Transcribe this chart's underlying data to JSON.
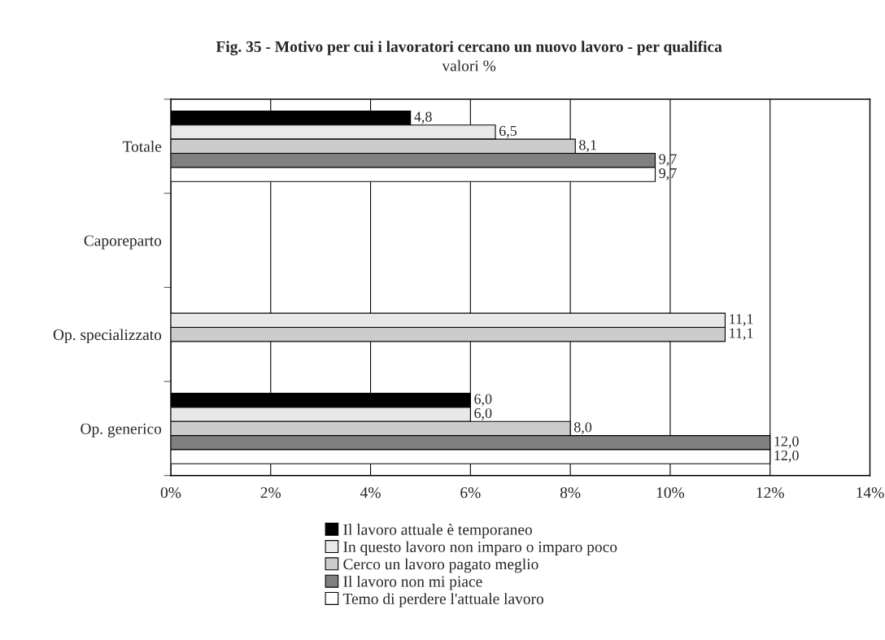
{
  "chart_data": {
    "type": "bar",
    "orientation": "horizontal",
    "title": "Fig. 35 - Motivo per cui i lavoratori cercano un nuovo lavoro - per qualifica",
    "subtitle": "valori %",
    "categories": [
      "Totale",
      "Caporeparto",
      "Op. specializzato",
      "Op. generico"
    ],
    "series": [
      {
        "name": "Il lavoro attuale è temporaneo",
        "color": "#000000",
        "values": [
          4.8,
          null,
          null,
          6.0
        ],
        "value_labels": [
          "4,8",
          null,
          null,
          "6,0"
        ]
      },
      {
        "name": "In questo lavoro non imparo o imparo poco",
        "color": "#e8e8e8",
        "values": [
          6.5,
          null,
          11.1,
          6.0
        ],
        "value_labels": [
          "6,5",
          null,
          "11,1",
          "6,0"
        ]
      },
      {
        "name": "Cerco un lavoro pagato meglio",
        "color": "#cccccc",
        "values": [
          8.1,
          null,
          11.1,
          8.0
        ],
        "value_labels": [
          "8,1",
          null,
          "11,1",
          "8,0"
        ]
      },
      {
        "name": "Il lavoro non mi piace",
        "color": "#808080",
        "values": [
          9.7,
          null,
          null,
          12.0
        ],
        "value_labels": [
          "9,7",
          null,
          null,
          "12,0"
        ]
      },
      {
        "name": "Temo di perdere l'attuale lavoro",
        "color": "#ffffff",
        "values": [
          9.7,
          null,
          null,
          12.0
        ],
        "value_labels": [
          "9,7",
          null,
          null,
          "12,0"
        ]
      }
    ],
    "xlim": [
      0,
      14
    ],
    "xticks": [
      {
        "value": 0,
        "label": "0%"
      },
      {
        "value": 2,
        "label": "2%"
      },
      {
        "value": 4,
        "label": "4%"
      },
      {
        "value": 6,
        "label": "6%"
      },
      {
        "value": 8,
        "label": "8%"
      },
      {
        "value": 10,
        "label": "10%"
      },
      {
        "value": 12,
        "label": "12%"
      },
      {
        "value": 14,
        "label": "14%"
      }
    ],
    "grid": "x",
    "legend": "bottom"
  }
}
